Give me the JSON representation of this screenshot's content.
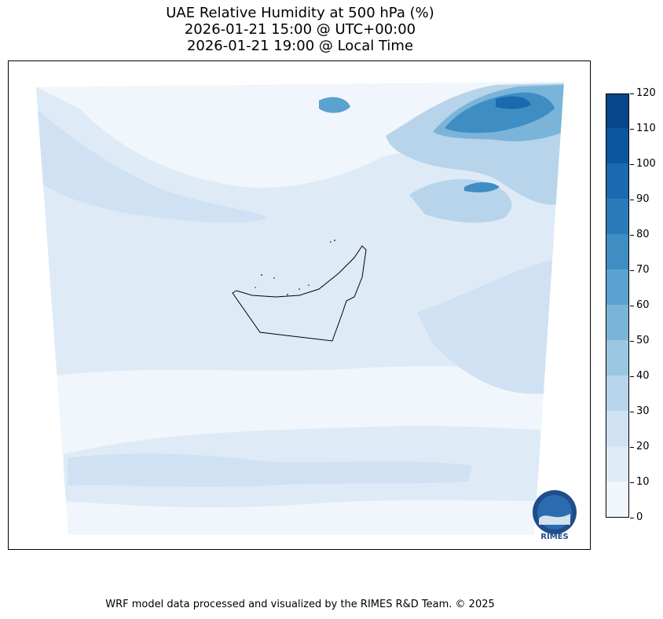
{
  "title": {
    "line1": "UAE Relative Humidity at 500 hPa (%)",
    "line2": "2026-01-21 15:00 @ UTC+00:00",
    "line3": "2026-01-21 19:00 @ Local Time"
  },
  "colorbar": {
    "ticks": [
      "0",
      "10",
      "20",
      "30",
      "40",
      "50",
      "60",
      "70",
      "80",
      "90",
      "100",
      "110",
      "120"
    ],
    "levels": [
      0,
      10,
      20,
      30,
      40,
      50,
      60,
      70,
      80,
      90,
      100,
      110,
      120
    ],
    "colors": [
      "#f0f6fc",
      "#deebf7",
      "#cfe1f2",
      "#b7d4ea",
      "#9ac8e0",
      "#7ab5d9",
      "#5aa2cf",
      "#3e8ec4",
      "#2b7bba",
      "#1b69af",
      "#0c56a0",
      "#08468b"
    ]
  },
  "logo": {
    "text": "RIMES",
    "icon": "rimes-logo-icon"
  },
  "footer": "WRF model data processed and visualized by the RIMES R&D Team. © 2025"
}
